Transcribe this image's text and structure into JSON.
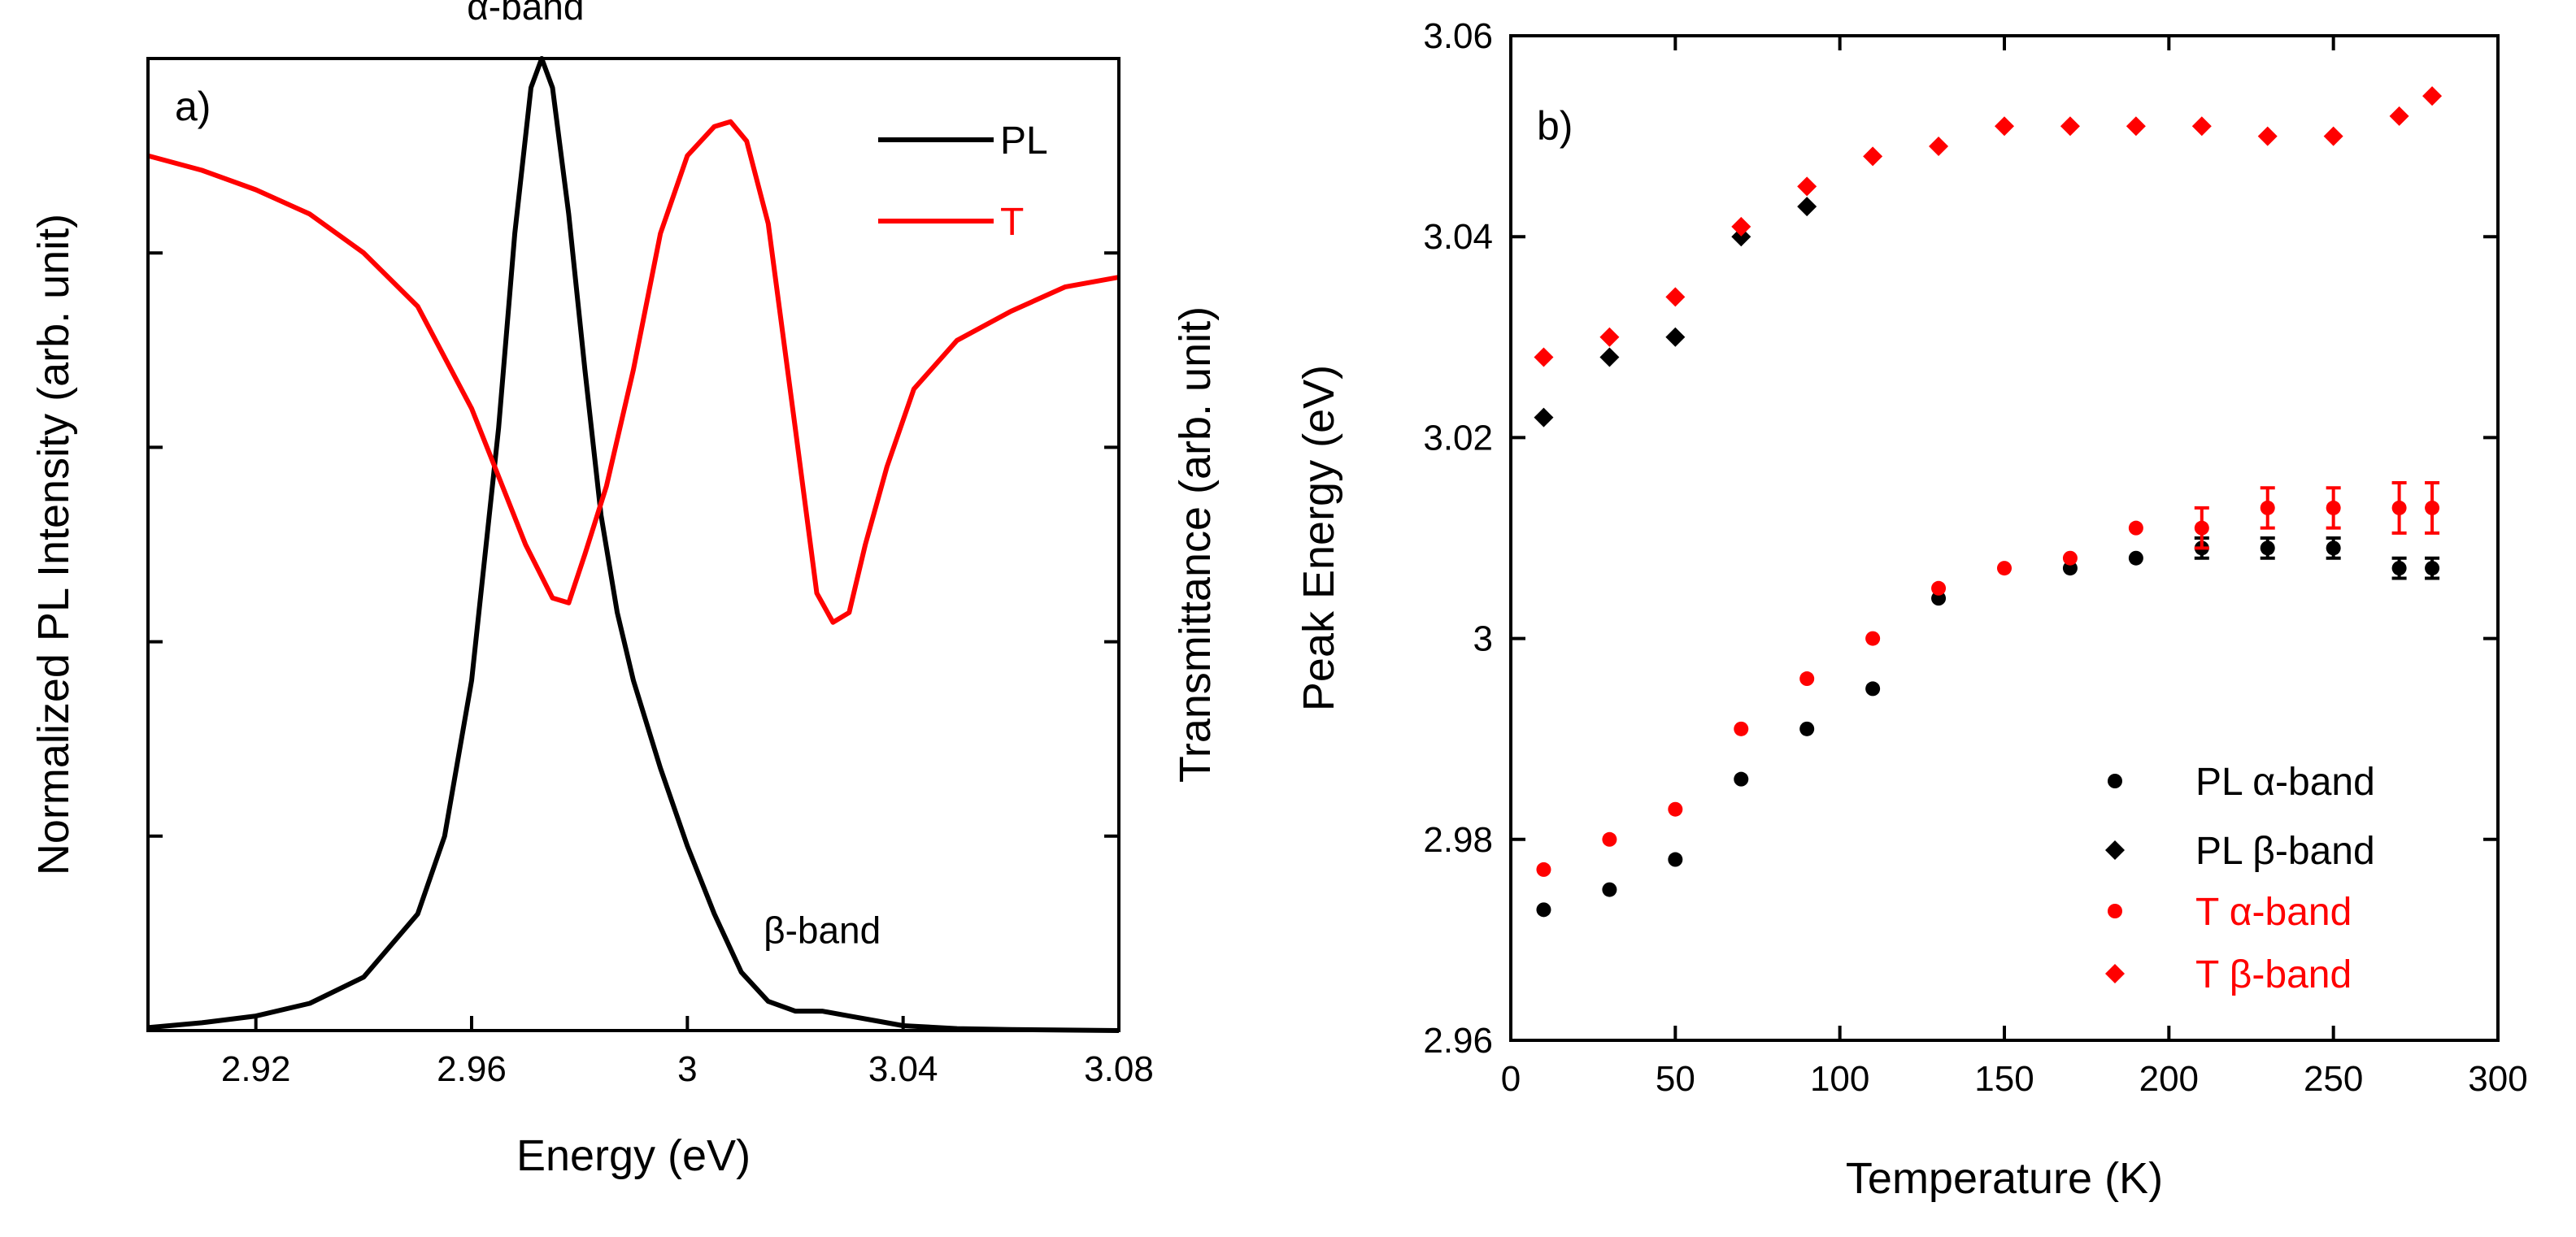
{
  "colors": {
    "black": "#000000",
    "red": "#ff0000"
  },
  "chart_data": [
    {
      "type": "line",
      "panel_label": "a)",
      "xlabel": "Energy (eV)",
      "ylabel_left": "Normalized PL Intensity (arb. unit)",
      "ylabel_right": "Transmittance (arb. unit)",
      "xlim": [
        2.9,
        3.08
      ],
      "ylim": [
        0,
        1.0
      ],
      "xticks": [
        2.92,
        2.96,
        3.0,
        3.04,
        3.08
      ],
      "xtick_labels": [
        "2.92",
        "2.96",
        "3",
        "3.04",
        "3.08"
      ],
      "yticks_left": [
        0.2,
        0.4,
        0.6,
        0.8,
        1.0
      ],
      "yticks_right": [
        0.2,
        0.4,
        0.6,
        0.8,
        1.0
      ],
      "legend": [
        "PL",
        "T"
      ],
      "legend_position": "top-right",
      "annotations": [
        {
          "text": "α-band",
          "x": 2.97,
          "y": 1.04
        },
        {
          "text": "β-band",
          "x": 3.025,
          "y": 0.09
        }
      ],
      "series": [
        {
          "name": "PL",
          "color": "#000000",
          "x": [
            2.9,
            2.91,
            2.92,
            2.93,
            2.94,
            2.95,
            2.955,
            2.96,
            2.965,
            2.968,
            2.971,
            2.973,
            2.975,
            2.978,
            2.981,
            2.984,
            2.987,
            2.99,
            2.995,
            3.0,
            3.005,
            3.01,
            3.015,
            3.02,
            3.025,
            3.03,
            3.035,
            3.04,
            3.05,
            3.06,
            3.08
          ],
          "values": [
            0.003,
            0.008,
            0.015,
            0.028,
            0.055,
            0.12,
            0.2,
            0.36,
            0.62,
            0.82,
            0.97,
            1.0,
            0.97,
            0.84,
            0.68,
            0.53,
            0.43,
            0.36,
            0.27,
            0.19,
            0.12,
            0.06,
            0.03,
            0.02,
            0.02,
            0.015,
            0.01,
            0.005,
            0.002,
            0.001,
            0.0
          ]
        },
        {
          "name": "T",
          "color": "#ff0000",
          "x": [
            2.9,
            2.91,
            2.92,
            2.93,
            2.94,
            2.95,
            2.96,
            2.965,
            2.97,
            2.975,
            2.978,
            2.981,
            2.985,
            2.99,
            2.995,
            3.0,
            3.005,
            3.008,
            3.011,
            3.015,
            3.02,
            3.024,
            3.027,
            3.03,
            3.033,
            3.037,
            3.042,
            3.05,
            3.06,
            3.07,
            3.08
          ],
          "values": [
            0.9,
            0.885,
            0.865,
            0.84,
            0.8,
            0.745,
            0.64,
            0.57,
            0.5,
            0.445,
            0.44,
            0.49,
            0.56,
            0.68,
            0.82,
            0.9,
            0.93,
            0.935,
            0.915,
            0.83,
            0.62,
            0.45,
            0.42,
            0.43,
            0.5,
            0.58,
            0.66,
            0.71,
            0.74,
            0.765,
            0.775
          ]
        }
      ]
    },
    {
      "type": "scatter",
      "panel_label": "b)",
      "xlabel": "Temperature (K)",
      "ylabel": "Peak Energy (eV)",
      "xlim": [
        0,
        300
      ],
      "ylim": [
        2.96,
        3.06
      ],
      "xticks": [
        0,
        50,
        100,
        150,
        200,
        250,
        300
      ],
      "xtick_labels": [
        "0",
        "50",
        "100",
        "150",
        "200",
        "250",
        "300"
      ],
      "yticks": [
        2.96,
        2.98,
        3.0,
        3.02,
        3.04,
        3.06
      ],
      "ytick_labels": [
        "2.96",
        "2.98",
        "3",
        "3.02",
        "3.04",
        "3.06"
      ],
      "legend_position": "bottom-right",
      "series": [
        {
          "name": "PL α-band",
          "marker": "circle",
          "color": "#000000",
          "x": [
            10,
            30,
            50,
            70,
            90,
            110,
            130,
            170,
            190,
            210,
            230,
            250,
            270,
            280
          ],
          "values": [
            2.973,
            2.975,
            2.978,
            2.986,
            2.991,
            2.995,
            3.004,
            3.007,
            3.008,
            3.009,
            3.009,
            3.009,
            3.007,
            3.007
          ],
          "errors": [
            0,
            0,
            0,
            0,
            0,
            0,
            0,
            0,
            0,
            0.001,
            0.001,
            0.001,
            0.001,
            0.001
          ]
        },
        {
          "name": "PL β-band",
          "marker": "diamond",
          "color": "#000000",
          "x": [
            10,
            30,
            50,
            70,
            90
          ],
          "values": [
            3.022,
            3.028,
            3.03,
            3.04,
            3.043
          ],
          "errors": [
            0,
            0,
            0,
            0,
            0
          ]
        },
        {
          "name": "T α-band",
          "marker": "circle",
          "color": "#ff0000",
          "x": [
            10,
            30,
            50,
            70,
            90,
            110,
            130,
            150,
            170,
            190,
            210,
            230,
            250,
            270,
            280
          ],
          "values": [
            2.977,
            2.98,
            2.983,
            2.991,
            2.996,
            3.0,
            3.005,
            3.007,
            3.008,
            3.011,
            3.011,
            3.013,
            3.013,
            3.013,
            3.013
          ],
          "errors": [
            0,
            0,
            0,
            0,
            0,
            0,
            0,
            0,
            0,
            0,
            0.002,
            0.002,
            0.002,
            0.0025,
            0.0025
          ]
        },
        {
          "name": "T β-band",
          "marker": "diamond",
          "color": "#ff0000",
          "x": [
            10,
            30,
            50,
            70,
            90,
            110,
            130,
            150,
            170,
            190,
            210,
            230,
            250,
            270,
            280
          ],
          "values": [
            3.028,
            3.03,
            3.034,
            3.041,
            3.045,
            3.048,
            3.049,
            3.051,
            3.051,
            3.051,
            3.051,
            3.05,
            3.05,
            3.052,
            3.054
          ],
          "errors": [
            0,
            0,
            0,
            0,
            0,
            0,
            0,
            0,
            0,
            0,
            0,
            0,
            0,
            0,
            0
          ]
        }
      ]
    }
  ]
}
